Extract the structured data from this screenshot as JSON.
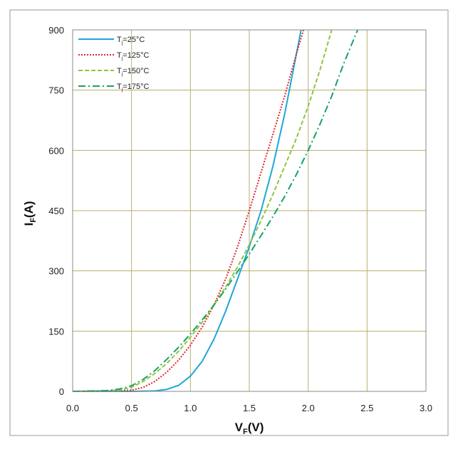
{
  "chart_data": {
    "type": "line",
    "xlabel": {
      "main": "V",
      "sub": "F",
      "suffix": "(V)"
    },
    "ylabel": {
      "main": "I",
      "sub": "F",
      "suffix": "(A)"
    },
    "xlim": [
      0,
      3
    ],
    "ylim": [
      0,
      900
    ],
    "x_ticks": [
      "0.0",
      "0.5",
      "1.0",
      "1.5",
      "2.0",
      "2.5",
      "3.0"
    ],
    "y_ticks": [
      "0",
      "150",
      "300",
      "450",
      "600",
      "750",
      "900"
    ],
    "grid": true,
    "legend_position": "top-left",
    "series": [
      {
        "name": "Tj=25°C",
        "legend": {
          "main": "T",
          "sub": "j",
          "suffix": "=25°C"
        },
        "color": "#1ea7d8",
        "dash": "solid",
        "points": [
          [
            0,
            0
          ],
          [
            0.5,
            0
          ],
          [
            0.7,
            1
          ],
          [
            0.8,
            5
          ],
          [
            0.9,
            15
          ],
          [
            1.0,
            38
          ],
          [
            1.1,
            75
          ],
          [
            1.2,
            130
          ],
          [
            1.3,
            200
          ],
          [
            1.4,
            280
          ],
          [
            1.5,
            360
          ],
          [
            1.6,
            450
          ],
          [
            1.7,
            560
          ],
          [
            1.8,
            690
          ],
          [
            1.9,
            840
          ],
          [
            1.94,
            900
          ]
        ]
      },
      {
        "name": "Tj=125°C",
        "legend": {
          "main": "T",
          "sub": "j",
          "suffix": "=125°C"
        },
        "color": "#e0242a",
        "dash": "dotted",
        "points": [
          [
            0,
            0
          ],
          [
            0.4,
            1
          ],
          [
            0.5,
            3
          ],
          [
            0.6,
            10
          ],
          [
            0.7,
            25
          ],
          [
            0.8,
            48
          ],
          [
            0.9,
            78
          ],
          [
            1.0,
            115
          ],
          [
            1.1,
            160
          ],
          [
            1.2,
            215
          ],
          [
            1.3,
            280
          ],
          [
            1.4,
            360
          ],
          [
            1.5,
            450
          ],
          [
            1.6,
            545
          ],
          [
            1.7,
            640
          ],
          [
            1.8,
            735
          ],
          [
            1.9,
            840
          ],
          [
            1.96,
            900
          ]
        ]
      },
      {
        "name": "Tj=150°C",
        "legend": {
          "main": "T",
          "sub": "j",
          "suffix": "=150°C"
        },
        "color": "#8cc63e",
        "dash": "dashed",
        "points": [
          [
            0,
            0
          ],
          [
            0.4,
            3
          ],
          [
            0.5,
            10
          ],
          [
            0.6,
            25
          ],
          [
            0.7,
            45
          ],
          [
            0.8,
            70
          ],
          [
            0.9,
            100
          ],
          [
            1.0,
            135
          ],
          [
            1.1,
            172
          ],
          [
            1.2,
            215
          ],
          [
            1.3,
            260
          ],
          [
            1.4,
            310
          ],
          [
            1.5,
            365
          ],
          [
            1.6,
            425
          ],
          [
            1.7,
            490
          ],
          [
            1.8,
            560
          ],
          [
            1.9,
            630
          ],
          [
            2.0,
            710
          ],
          [
            2.1,
            800
          ],
          [
            2.2,
            900
          ]
        ]
      },
      {
        "name": "Tj=175°C",
        "legend": {
          "main": "T",
          "sub": "j",
          "suffix": "=175°C"
        },
        "color": "#16a263",
        "dash": "dashdot",
        "points": [
          [
            0,
            0
          ],
          [
            0.3,
            2
          ],
          [
            0.4,
            6
          ],
          [
            0.5,
            14
          ],
          [
            0.6,
            30
          ],
          [
            0.7,
            52
          ],
          [
            0.8,
            80
          ],
          [
            0.9,
            110
          ],
          [
            1.0,
            143
          ],
          [
            1.1,
            178
          ],
          [
            1.2,
            215
          ],
          [
            1.3,
            255
          ],
          [
            1.4,
            298
          ],
          [
            1.5,
            342
          ],
          [
            1.6,
            388
          ],
          [
            1.7,
            435
          ],
          [
            1.8,
            485
          ],
          [
            1.9,
            540
          ],
          [
            2.0,
            600
          ],
          [
            2.1,
            665
          ],
          [
            2.2,
            735
          ],
          [
            2.3,
            815
          ],
          [
            2.42,
            900
          ]
        ]
      }
    ]
  }
}
